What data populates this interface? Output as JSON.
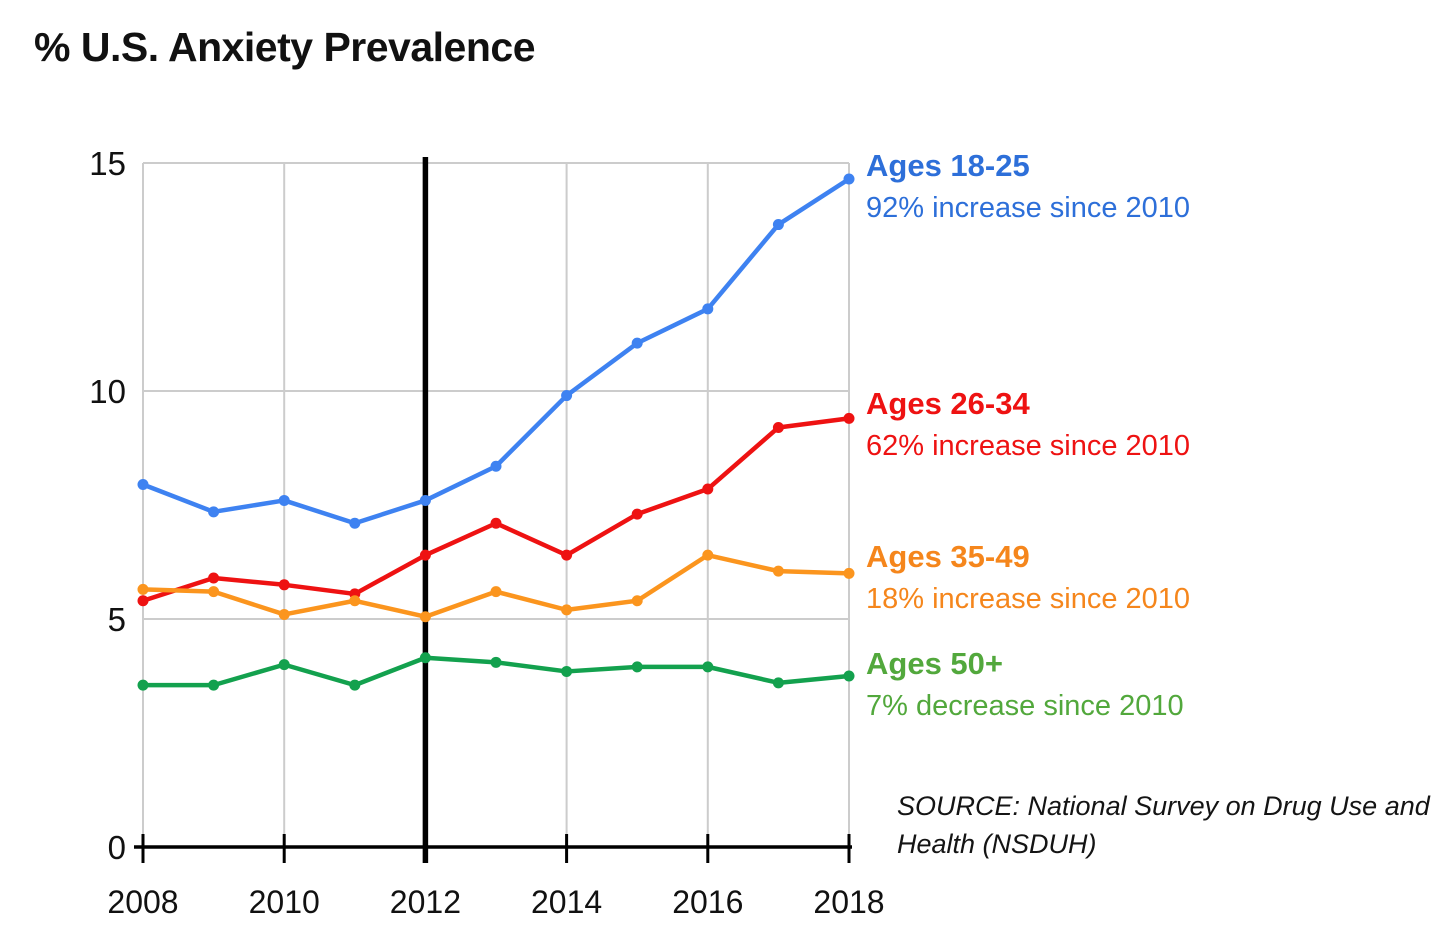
{
  "title": "% U.S. Anxiety Prevalence",
  "source_note": "SOURCE: National Survey on Drug Use and Health (NSDUH)",
  "colors": {
    "grid": "#cccccc",
    "axis": "#000000",
    "reference_line": "#000000",
    "text": "#111111"
  },
  "chart_data": {
    "type": "line",
    "title": "% U.S. Anxiety Prevalence",
    "xlabel": "",
    "ylabel": "",
    "x": [
      2008,
      2009,
      2010,
      2011,
      2012,
      2013,
      2014,
      2015,
      2016,
      2017,
      2018
    ],
    "xticks": [
      2008,
      2010,
      2012,
      2014,
      2016,
      2018
    ],
    "ylim": [
      0,
      15
    ],
    "yticks": [
      0,
      5,
      10,
      15
    ],
    "grid": true,
    "legend_position": "right",
    "reference_line": {
      "x": 2012,
      "orientation": "vertical"
    },
    "series": [
      {
        "name": "Ages 18-25",
        "annotation": "92% increase since 2010",
        "color": "#3e82f1",
        "legend_color": "#2d6fd9",
        "values": [
          7.95,
          7.35,
          7.6,
          7.1,
          7.6,
          8.35,
          9.9,
          11.05,
          11.8,
          13.65,
          14.65
        ]
      },
      {
        "name": "Ages 26-34",
        "annotation": "62% increase since 2010",
        "color": "#ee1212",
        "legend_color": "#ee1212",
        "values": [
          5.4,
          5.9,
          5.75,
          5.55,
          6.4,
          7.1,
          6.4,
          7.3,
          7.85,
          9.2,
          9.4
        ]
      },
      {
        "name": "Ages 35-49",
        "annotation": "18% increase since 2010",
        "color": "#fb951e",
        "legend_color": "#f5861c",
        "values": [
          5.65,
          5.6,
          5.1,
          5.4,
          5.05,
          5.6,
          5.2,
          5.4,
          6.4,
          6.05,
          6.0
        ]
      },
      {
        "name": "Ages 50+",
        "annotation": "7% decrease since 2010",
        "color": "#13a14e",
        "legend_color": "#52a83c",
        "values": [
          3.55,
          3.55,
          4.0,
          3.55,
          4.15,
          4.05,
          3.85,
          3.95,
          3.95,
          3.6,
          3.75
        ]
      }
    ]
  }
}
